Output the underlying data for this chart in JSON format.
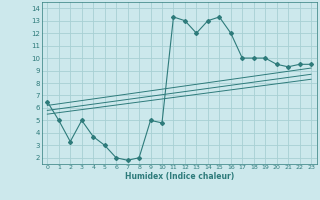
{
  "xlabel": "Humidex (Indice chaleur)",
  "xlim": [
    -0.5,
    23.5
  ],
  "ylim": [
    1.5,
    14.5
  ],
  "yticks": [
    2,
    3,
    4,
    5,
    6,
    7,
    8,
    9,
    10,
    11,
    12,
    13,
    14
  ],
  "xticks": [
    0,
    1,
    2,
    3,
    4,
    5,
    6,
    7,
    8,
    9,
    10,
    11,
    12,
    13,
    14,
    15,
    16,
    17,
    18,
    19,
    20,
    21,
    22,
    23
  ],
  "bg_color": "#cce8ec",
  "grid_color": "#a8d0d4",
  "line_color": "#2e7b7b",
  "main_x": [
    0,
    1,
    2,
    3,
    4,
    5,
    6,
    7,
    8,
    9,
    10,
    11,
    12,
    13,
    14,
    15,
    16,
    17,
    18,
    19,
    20,
    21,
    22,
    23
  ],
  "main_y": [
    6.5,
    5.0,
    3.3,
    5.0,
    3.7,
    3.0,
    2.0,
    1.8,
    2.0,
    5.0,
    4.8,
    13.3,
    13.0,
    12.0,
    13.0,
    13.3,
    12.0,
    10.0,
    10.0,
    10.0,
    9.5,
    9.3,
    9.5,
    9.5
  ],
  "trend1_x": [
    0,
    23
  ],
  "trend1_y": [
    5.5,
    8.3
  ],
  "trend2_x": [
    0,
    23
  ],
  "trend2_y": [
    5.8,
    8.7
  ],
  "trend3_x": [
    0,
    23
  ],
  "trend3_y": [
    6.2,
    9.2
  ]
}
